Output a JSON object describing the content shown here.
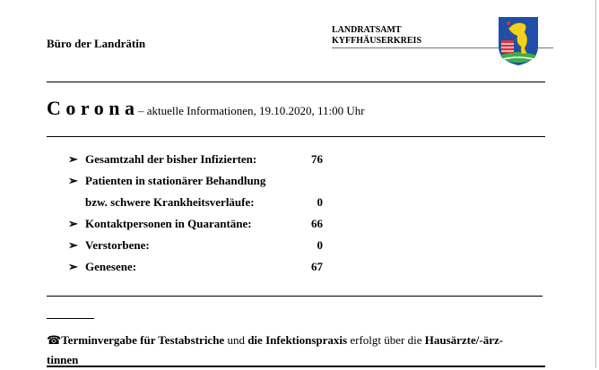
{
  "header": {
    "office": "Büro der Landrätin",
    "org_line1": "LANDRATSAMT",
    "org_line2": "KYFFHÄUSERKREIS",
    "crest_icon": "kyffhaeuserkreis-coat-of-arms"
  },
  "title": {
    "main": "C o r o n a",
    "sub": "– aktuelle Informationen, 19.10.2020, 11:00 Uhr"
  },
  "stats": [
    {
      "bullet": "➢",
      "label": "Gesamtzahl der bisher Infizierten:",
      "value": "76"
    },
    {
      "bullet": "➢",
      "label": "Patienten in stationärer Behandlung",
      "value": ""
    },
    {
      "bullet": "",
      "label": "bzw. schwere Krankheitsverläufe:",
      "value": "0"
    },
    {
      "bullet": "➢",
      "label": "Kontaktpersonen in Quarantäne:",
      "value": "66"
    },
    {
      "bullet": "➢",
      "label": "Verstorbene:",
      "value": "0"
    },
    {
      "bullet": "➢",
      "label": "Genesene:",
      "value": "67"
    }
  ],
  "note": {
    "icon": "telephone-icon",
    "glyph": "☎",
    "p1": "Terminvergabe für Testabstriche",
    "p2": " und ",
    "p3": "die Infektionspraxis",
    "p4": " erfolgt über die ",
    "p5": "Hausärzte/-ärz-",
    "p6": "tinnen"
  }
}
